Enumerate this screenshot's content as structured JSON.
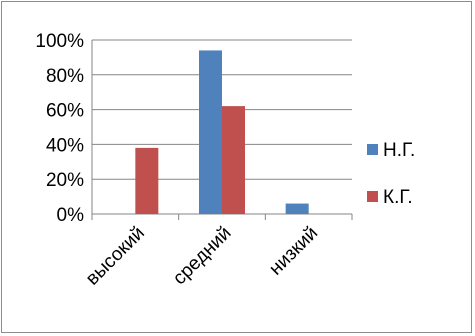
{
  "chart_data": {
    "type": "bar",
    "categories": [
      "высокий",
      "средний",
      "низкий"
    ],
    "series": [
      {
        "name": "Н.Г.",
        "values": [
          0,
          94,
          6
        ],
        "color": "#4f81bd"
      },
      {
        "name": "К.Г.",
        "values": [
          38,
          62,
          0
        ],
        "color": "#c0504d"
      }
    ],
    "yticks": [
      "0%",
      "20%",
      "40%",
      "60%",
      "80%",
      "100%"
    ],
    "ylim": [
      0,
      100
    ],
    "grid": true,
    "legend": "right",
    "title": "",
    "xlabel": "",
    "ylabel": ""
  }
}
